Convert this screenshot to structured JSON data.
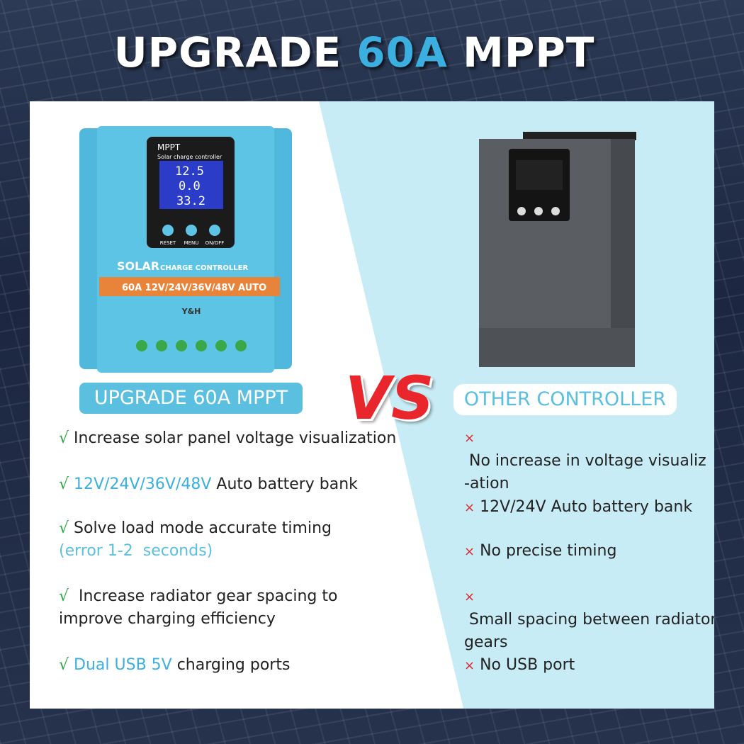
{
  "title": [
    {
      "text": "UPGRADE ",
      "color": "#ffffff"
    },
    {
      "text": "60A",
      "color": "#3bb0e0"
    },
    {
      "text": " MPPT",
      "color": "#ffffff"
    }
  ],
  "left_device": {
    "screen_title": "MPPT",
    "screen_subtitle": "Solar charge controller",
    "readings": [
      "12.5",
      "0.0",
      "33.2"
    ],
    "buttons": [
      "RESET",
      "MENU",
      "ON/OFF"
    ],
    "brand_line_1": "SOLAR",
    "brand_line_2": "CHARGE CONTROLLER",
    "rating": "60A 12V/24V/36V/48V  AUTO",
    "maker": "Y&H"
  },
  "left_badge": "UPGRADE 60A MPPT",
  "vs": "VS",
  "right_badge": "OTHER CONTROLLER",
  "left_features": [
    {
      "mark": "√",
      "lines": [
        [
          {
            "text": " Increase solar panel voltage visualization",
            "color": "#222222"
          }
        ]
      ]
    },
    {
      "mark": "√",
      "lines": [
        [
          {
            "text": " 12V/24V/36V/48V",
            "color": "#3bb0e0"
          },
          {
            "text": " Auto battery bank",
            "color": "#222222"
          }
        ]
      ]
    },
    {
      "mark": "√",
      "lines": [
        [
          {
            "text": " Solve load mode accurate timing",
            "color": "#222222"
          }
        ],
        [
          {
            "text": "(error 1-2  seconds)",
            "color": "#5bbfe0"
          }
        ]
      ]
    },
    {
      "mark": "√",
      "lines": [
        [
          {
            "text": "  Increase radiator gear spacing to",
            "color": "#222222"
          }
        ],
        [
          {
            "text": "improve charging efficiency",
            "color": "#222222"
          }
        ]
      ]
    },
    {
      "mark": "√",
      "lines": [
        [
          {
            "text": " Dual USB 5V",
            "color": "#3bb0e0"
          },
          {
            "text": " charging ports",
            "color": "#222222"
          }
        ]
      ]
    }
  ],
  "right_features": [
    {
      "mark": "×",
      "lines": [
        [
          {
            "text": " No increase in voltage visualiz",
            "color": "#222222"
          }
        ],
        [
          {
            "text": "-ation",
            "color": "#222222"
          }
        ]
      ]
    },
    {
      "mark": "×",
      "lines": [
        [
          {
            "text": " 12V/24V Auto battery bank",
            "color": "#222222"
          }
        ]
      ]
    },
    {
      "mark": "×",
      "lines": [
        [
          {
            "text": " No precise timing",
            "color": "#222222"
          }
        ]
      ]
    },
    {
      "mark": "×",
      "lines": [
        [
          {
            "text": " Small spacing between radiator",
            "color": "#222222"
          }
        ],
        [
          {
            "text": "gears",
            "color": "#222222"
          }
        ]
      ]
    },
    {
      "mark": "×",
      "lines": [
        [
          {
            "text": " No USB port",
            "color": "#222222"
          }
        ]
      ]
    }
  ]
}
